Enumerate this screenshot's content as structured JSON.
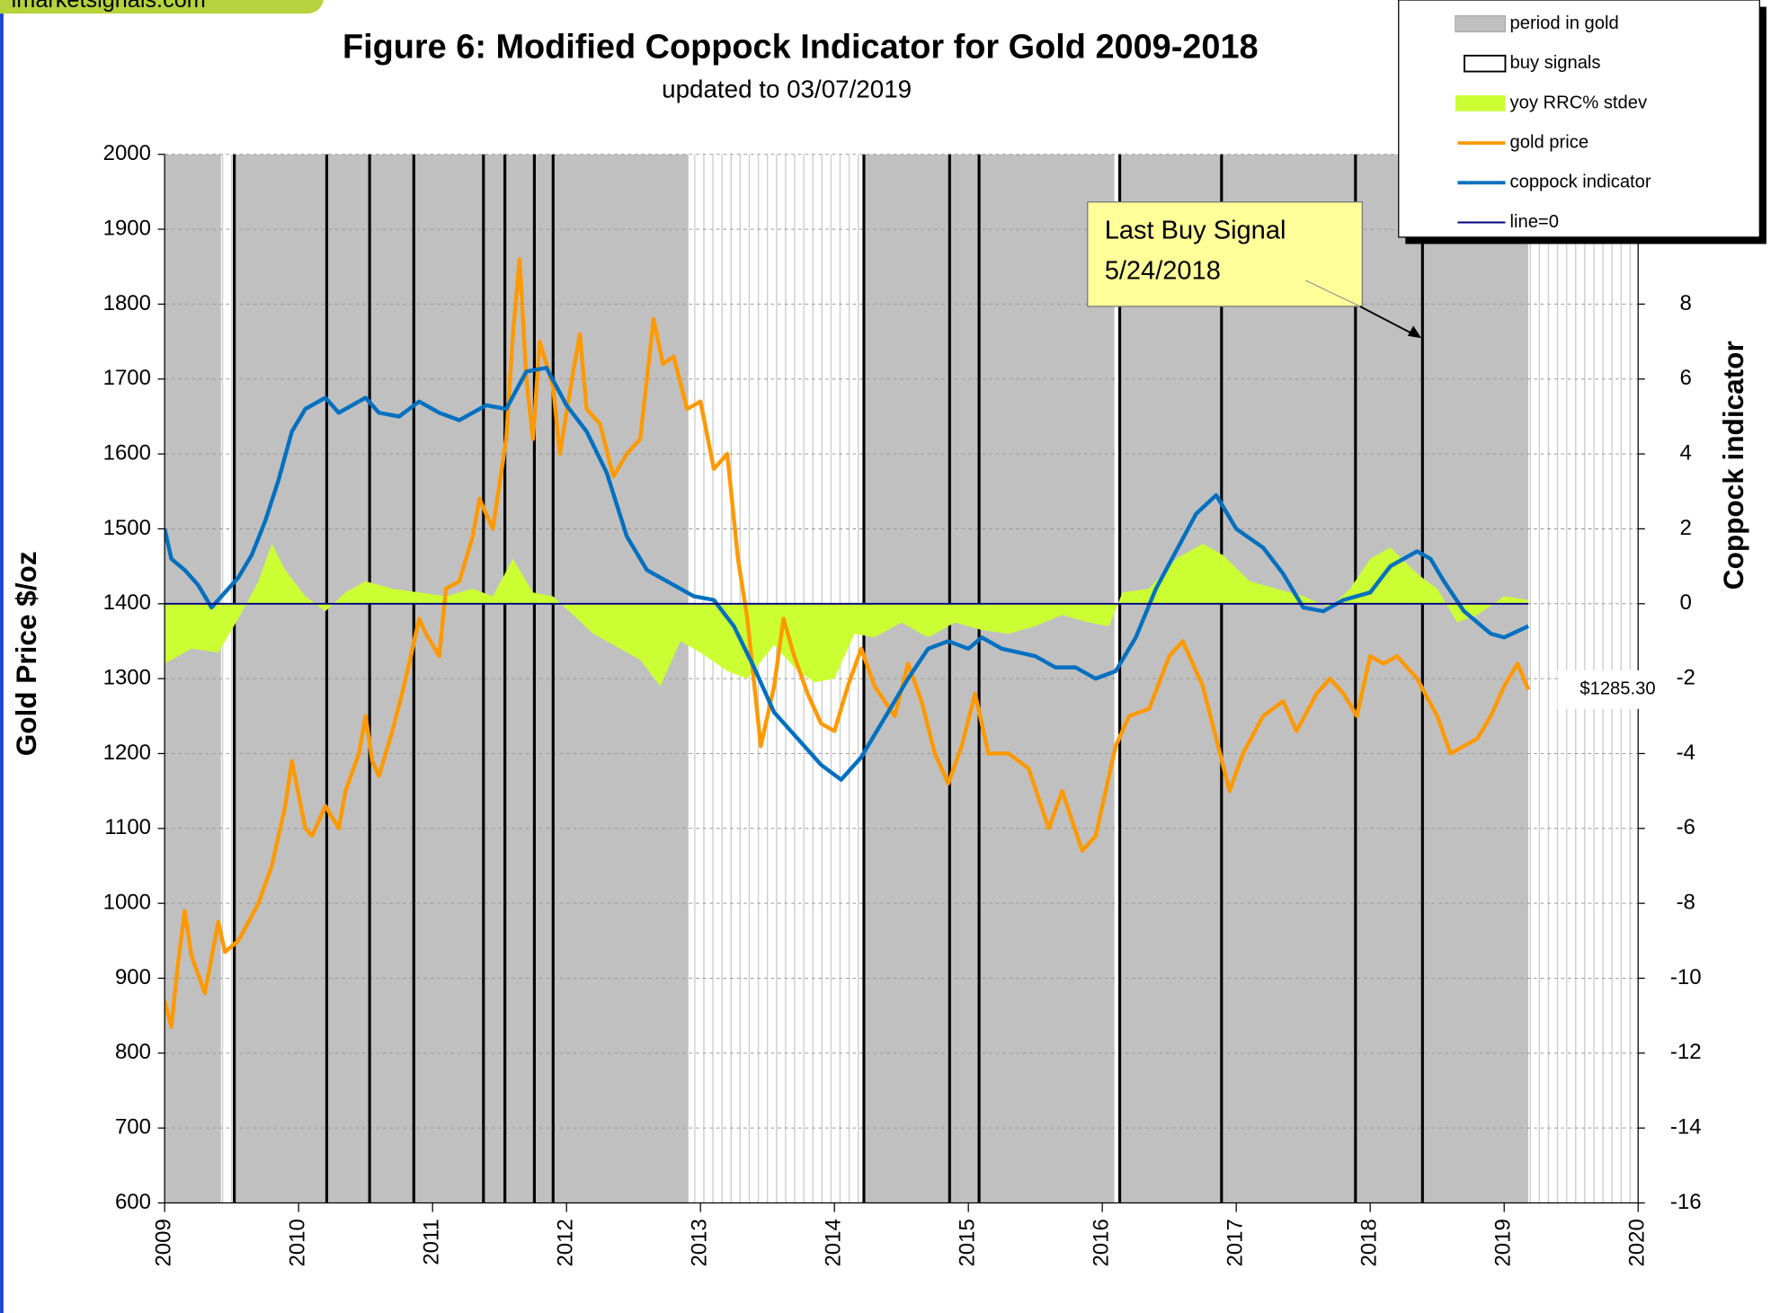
{
  "chart_data": {
    "type": "line",
    "logo": "imarketsignals.com",
    "title": "Figure 6:  Modified Coppock Indicator for Gold  2009-2018",
    "subtitle": "updated to  03/07/2019",
    "ylabel": "Gold Price  $/oz",
    "y2label": "Coppock indicator",
    "annotation": {
      "lines": [
        "Last Buy Signal",
        "5/24/2018"
      ]
    },
    "xlim": [
      2009,
      2020
    ],
    "xticks": [
      2009,
      2010,
      2011,
      2012,
      2013,
      2014,
      2015,
      2016,
      2017,
      2018,
      2019,
      2020
    ],
    "ylim": [
      600,
      2000
    ],
    "yticks": [
      600,
      700,
      800,
      900,
      1000,
      1100,
      1200,
      1300,
      1400,
      1500,
      1600,
      1700,
      1800,
      1900,
      2000
    ],
    "y2lim": [
      -16,
      12
    ],
    "y2ticks": [
      -16,
      -14,
      -12,
      -10,
      -8,
      -6,
      -4,
      -2,
      0,
      2,
      4,
      6,
      8
    ],
    "grid": true,
    "legend": "top-right",
    "spans": {
      "name": "period in gold",
      "color": "#c0c0c0",
      "ranges": [
        [
          2009.0,
          2009.42
        ],
        [
          2009.51,
          2012.91
        ],
        [
          2014.22,
          2016.09
        ],
        [
          2016.13,
          2019.18
        ]
      ]
    },
    "signals": {
      "name": "buy signals",
      "color": "#000000",
      "x": [
        2009.52,
        2010.21,
        2010.53,
        2010.86,
        2011.38,
        2011.54,
        2011.76,
        2011.9,
        2014.22,
        2014.86,
        2015.08,
        2016.13,
        2016.89,
        2017.89,
        2018.39
      ]
    },
    "series": [
      {
        "name": "yoy RRC% stdev",
        "color": "#ccff33",
        "axis": "y2",
        "style": "area",
        "x": [
          2009.0,
          2009.2,
          2009.4,
          2009.55,
          2009.7,
          2009.8,
          2009.9,
          2010.05,
          2010.2,
          2010.35,
          2010.5,
          2010.7,
          2010.9,
          2011.1,
          2011.3,
          2011.45,
          2011.6,
          2011.75,
          2011.9,
          2012.05,
          2012.2,
          2012.4,
          2012.55,
          2012.7,
          2012.85,
          2013.0,
          2013.2,
          2013.35,
          2013.55,
          2013.7,
          2013.85,
          2014.0,
          2014.15,
          2014.3,
          2014.5,
          2014.7,
          2014.9,
          2015.1,
          2015.3,
          2015.5,
          2015.7,
          2015.9,
          2016.05,
          2016.15,
          2016.35,
          2016.55,
          2016.75,
          2016.9,
          2017.1,
          2017.3,
          2017.5,
          2017.7,
          2017.85,
          2018.0,
          2018.15,
          2018.35,
          2018.5,
          2018.65,
          2018.8,
          2019.0,
          2019.18
        ],
        "values": [
          -1.6,
          -1.2,
          -1.3,
          -0.4,
          0.6,
          1.6,
          0.9,
          0.2,
          -0.2,
          0.3,
          0.6,
          0.4,
          0.3,
          0.2,
          0.4,
          0.2,
          1.2,
          0.3,
          0.2,
          -0.3,
          -0.8,
          -1.2,
          -1.5,
          -2.2,
          -1.0,
          -1.3,
          -1.8,
          -2.0,
          -1.1,
          -1.7,
          -2.1,
          -2.0,
          -0.8,
          -0.9,
          -0.5,
          -0.9,
          -0.5,
          -0.7,
          -0.8,
          -0.6,
          -0.3,
          -0.5,
          -0.6,
          0.3,
          0.4,
          1.2,
          1.6,
          1.3,
          0.6,
          0.4,
          0.2,
          -0.1,
          0.4,
          1.2,
          1.5,
          0.8,
          0.4,
          -0.5,
          -0.3,
          0.2,
          0.1
        ]
      },
      {
        "name": "gold price",
        "color": "#ff9900",
        "axis": "y",
        "x": [
          2009.0,
          2009.05,
          2009.1,
          2009.15,
          2009.2,
          2009.3,
          2009.4,
          2009.45,
          2009.55,
          2009.7,
          2009.8,
          2009.9,
          2009.95,
          2010.05,
          2010.1,
          2010.2,
          2010.3,
          2010.35,
          2010.45,
          2010.5,
          2010.55,
          2010.6,
          2010.7,
          2010.8,
          2010.9,
          2010.95,
          2011.05,
          2011.1,
          2011.2,
          2011.3,
          2011.35,
          2011.45,
          2011.55,
          2011.6,
          2011.65,
          2011.7,
          2011.75,
          2011.8,
          2011.9,
          2011.95,
          2012.05,
          2012.1,
          2012.15,
          2012.25,
          2012.35,
          2012.45,
          2012.55,
          2012.65,
          2012.72,
          2012.8,
          2012.9,
          2013.0,
          2013.1,
          2013.2,
          2013.28,
          2013.35,
          2013.45,
          2013.55,
          2013.62,
          2013.7,
          2013.8,
          2013.9,
          2014.0,
          2014.1,
          2014.2,
          2014.3,
          2014.45,
          2014.55,
          2014.65,
          2014.75,
          2014.85,
          2014.95,
          2015.05,
          2015.15,
          2015.3,
          2015.45,
          2015.6,
          2015.7,
          2015.85,
          2015.95,
          2016.1,
          2016.2,
          2016.35,
          2016.5,
          2016.6,
          2016.75,
          2016.85,
          2016.95,
          2017.05,
          2017.2,
          2017.35,
          2017.45,
          2017.6,
          2017.7,
          2017.8,
          2017.9,
          2018.0,
          2018.1,
          2018.2,
          2018.35,
          2018.5,
          2018.6,
          2018.7,
          2018.8,
          2018.9,
          2019.0,
          2019.1,
          2019.18
        ],
        "values": [
          870,
          835,
          920,
          990,
          930,
          880,
          975,
          935,
          950,
          1000,
          1050,
          1130,
          1190,
          1100,
          1090,
          1130,
          1100,
          1150,
          1200,
          1250,
          1190,
          1170,
          1230,
          1300,
          1380,
          1360,
          1330,
          1420,
          1430,
          1490,
          1540,
          1500,
          1620,
          1760,
          1860,
          1700,
          1620,
          1750,
          1690,
          1600,
          1710,
          1760,
          1660,
          1640,
          1570,
          1600,
          1620,
          1780,
          1720,
          1730,
          1660,
          1670,
          1580,
          1600,
          1460,
          1380,
          1210,
          1290,
          1380,
          1330,
          1280,
          1240,
          1230,
          1290,
          1340,
          1290,
          1250,
          1320,
          1270,
          1200,
          1160,
          1210,
          1280,
          1200,
          1200,
          1180,
          1100,
          1150,
          1070,
          1090,
          1210,
          1250,
          1260,
          1330,
          1350,
          1290,
          1220,
          1150,
          1200,
          1250,
          1270,
          1230,
          1280,
          1300,
          1280,
          1250,
          1330,
          1320,
          1330,
          1300,
          1250,
          1200,
          1210,
          1220,
          1250,
          1290,
          1320,
          1285.3
        ],
        "value_labels": [
          null,
          null,
          null,
          null,
          null,
          null,
          null,
          null,
          null,
          null,
          null,
          null,
          null,
          null,
          null,
          null,
          null,
          null,
          null,
          null,
          null,
          null,
          null,
          null,
          null,
          null,
          null,
          null,
          null,
          null,
          null,
          null,
          null,
          null,
          null,
          null,
          null,
          null,
          null,
          null,
          null,
          null,
          null,
          null,
          null,
          null,
          null,
          null,
          null,
          null,
          null,
          null,
          null,
          null,
          null,
          null,
          null,
          null,
          null,
          null,
          null,
          null,
          null,
          null,
          null,
          null,
          null,
          null,
          null,
          null,
          null,
          null,
          null,
          null,
          null,
          null,
          null,
          null,
          null,
          null,
          null,
          null,
          null,
          null,
          null,
          null,
          null,
          null,
          null,
          null,
          null,
          null,
          null,
          null,
          null,
          null,
          null,
          null,
          null,
          null,
          null,
          null,
          null,
          null,
          null,
          null,
          null,
          "$1285.30"
        ]
      },
      {
        "name": "coppock indicator",
        "color": "#0070c0",
        "axis": "y2",
        "x": [
          2009.0,
          2009.05,
          2009.15,
          2009.25,
          2009.35,
          2009.45,
          2009.55,
          2009.65,
          2009.75,
          2009.85,
          2009.95,
          2010.05,
          2010.2,
          2010.3,
          2010.5,
          2010.6,
          2010.75,
          2010.9,
          2011.05,
          2011.2,
          2011.4,
          2011.55,
          2011.7,
          2011.85,
          2012.0,
          2012.15,
          2012.3,
          2012.45,
          2012.6,
          2012.8,
          2012.95,
          2013.1,
          2013.25,
          2013.4,
          2013.55,
          2013.75,
          2013.9,
          2014.05,
          2014.2,
          2014.4,
          2014.55,
          2014.7,
          2014.85,
          2015.0,
          2015.1,
          2015.25,
          2015.5,
          2015.65,
          2015.8,
          2015.95,
          2016.1,
          2016.25,
          2016.4,
          2016.55,
          2016.7,
          2016.85,
          2017.0,
          2017.2,
          2017.35,
          2017.5,
          2017.65,
          2017.8,
          2018.0,
          2018.15,
          2018.35,
          2018.45,
          2018.55,
          2018.7,
          2018.9,
          2019.0,
          2019.18
        ],
        "values": [
          2.0,
          1.2,
          0.9,
          0.5,
          -0.1,
          0.3,
          0.7,
          1.3,
          2.2,
          3.3,
          4.6,
          5.2,
          5.5,
          5.1,
          5.5,
          5.1,
          5.0,
          5.4,
          5.1,
          4.9,
          5.3,
          5.2,
          6.2,
          6.3,
          5.3,
          4.6,
          3.5,
          1.8,
          0.9,
          0.5,
          0.2,
          0.1,
          -0.6,
          -1.7,
          -2.9,
          -3.7,
          -4.3,
          -4.7,
          -4.1,
          -2.9,
          -2.0,
          -1.2,
          -1.0,
          -1.2,
          -0.9,
          -1.2,
          -1.4,
          -1.7,
          -1.7,
          -2.0,
          -1.8,
          -0.9,
          0.4,
          1.4,
          2.4,
          2.9,
          2.0,
          1.5,
          0.8,
          -0.1,
          -0.2,
          0.1,
          0.3,
          1.0,
          1.4,
          1.2,
          0.6,
          -0.2,
          -0.8,
          -0.9,
          -0.6
        ]
      },
      {
        "name": "line=0",
        "color": "#000080",
        "axis": "y2",
        "x": [
          2009.0,
          2019.18
        ],
        "values": [
          0,
          0
        ]
      }
    ]
  }
}
